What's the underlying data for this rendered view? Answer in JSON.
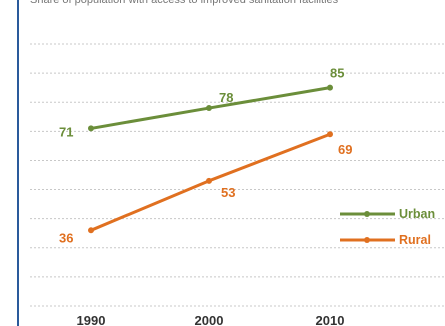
{
  "caption": "Share of population with access to improved sanitation facilities",
  "chart_data": {
    "type": "line",
    "x": [
      "1990",
      "2000",
      "2010"
    ],
    "series": [
      {
        "name": "Urban",
        "values": [
          71,
          78,
          85
        ],
        "color": "#6b8e3a"
      },
      {
        "name": "Rural",
        "values": [
          36,
          53,
          69
        ],
        "color": "#e07020"
      }
    ],
    "ylim": [
      10,
      100
    ],
    "grid": true,
    "legend": "right",
    "title": "",
    "xlabel": "",
    "ylabel": ""
  }
}
